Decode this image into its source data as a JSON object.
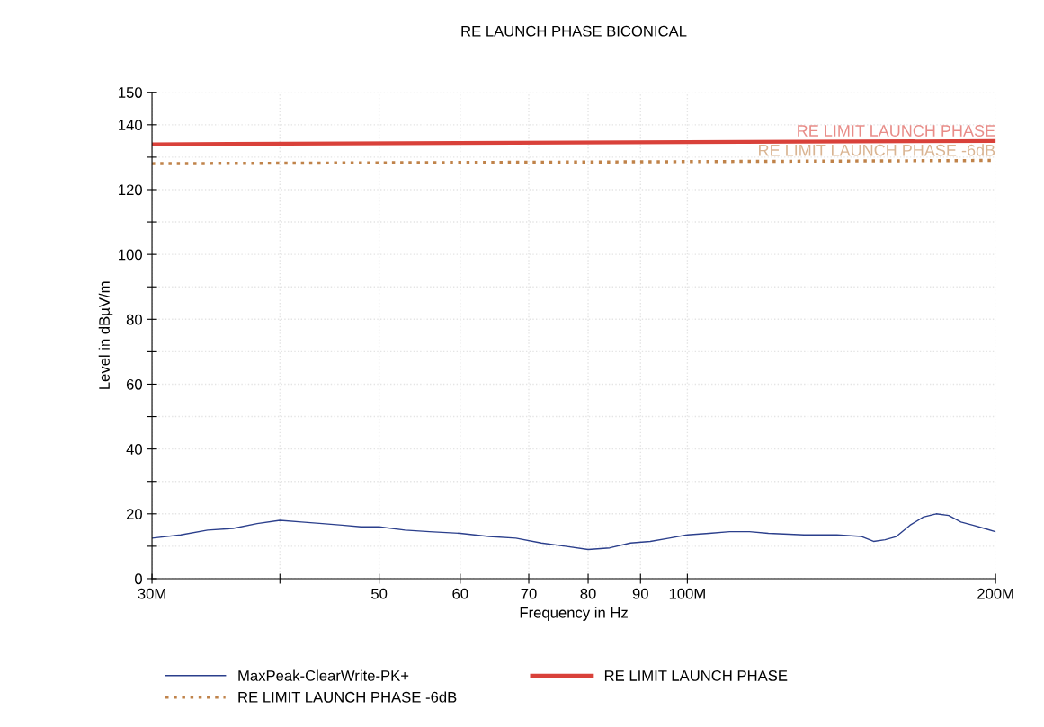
{
  "chart_data": {
    "type": "line",
    "title": "RE LAUNCH PHASE BICONICAL",
    "xlabel": "Frequency in Hz",
    "ylabel": "Level in dBµV/m",
    "log": "x",
    "grid": true,
    "legend": "bottom",
    "xlim": [
      30,
      200
    ],
    "xticks": [
      {
        "value": 30,
        "label": "30M"
      },
      {
        "value": 40,
        "label": null
      },
      50,
      60,
      70,
      80,
      90,
      {
        "value": 100,
        "label": "100M"
      },
      {
        "value": 200,
        "label": "200M"
      }
    ],
    "ylim": [
      0,
      150
    ],
    "yticks": [
      0,
      {
        "value": 10,
        "label": null
      },
      20,
      {
        "value": 30,
        "label": null
      },
      40,
      {
        "value": 50,
        "label": null
      },
      60,
      {
        "value": 70,
        "label": null
      },
      80,
      {
        "value": 90,
        "label": null
      },
      100,
      {
        "value": 110,
        "label": null
      },
      120,
      {
        "value": 130,
        "label": null
      },
      140,
      150
    ],
    "series": [
      {
        "name": "MaxPeak-ClearWrite-PK+",
        "color": "#2b3f8c",
        "line_style": "solid",
        "x": [
          30,
          32,
          34,
          36,
          38,
          40,
          42,
          44,
          46,
          48,
          50,
          53,
          56,
          60,
          64,
          68,
          72,
          76,
          80,
          84,
          88,
          92,
          96,
          100,
          105,
          110,
          115,
          120,
          130,
          140,
          148,
          152,
          156,
          160,
          165,
          170,
          175,
          180,
          185,
          190,
          195,
          200
        ],
        "values": [
          12.5,
          13.5,
          15,
          15.5,
          17,
          18,
          17.5,
          17,
          16.5,
          16,
          16,
          15,
          14.5,
          14,
          13,
          12.5,
          11,
          10,
          9,
          9.5,
          11,
          11.5,
          12.5,
          13.5,
          14,
          14.5,
          14.5,
          14,
          13.5,
          13.5,
          13,
          11.5,
          12,
          13,
          16.5,
          19,
          20,
          19.5,
          17.5,
          16.5,
          15.5,
          14.5
        ]
      },
      {
        "name": "RE LIMIT LAUNCH PHASE",
        "color": "#d9413a",
        "line_style": "solid",
        "x": [
          30,
          200
        ],
        "values": [
          134,
          135
        ]
      },
      {
        "name": "RE LIMIT LAUNCH PHASE -6dB",
        "color": "#c0834a",
        "line_style": "dotted",
        "x": [
          30,
          200
        ],
        "values": [
          128,
          129
        ]
      }
    ]
  }
}
